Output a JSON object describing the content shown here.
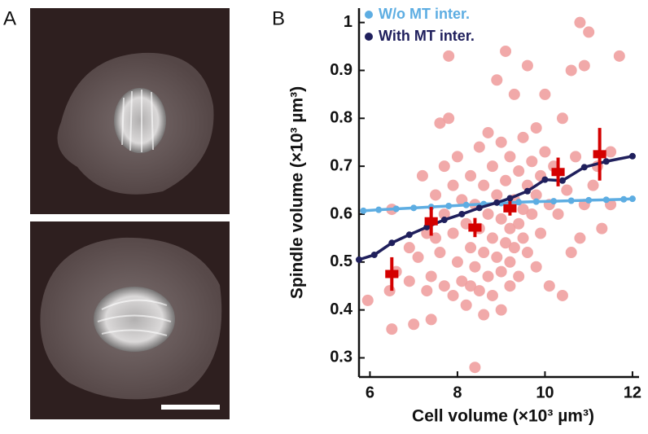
{
  "panels": {
    "a": "A",
    "b": "B"
  },
  "chart_data": {
    "type": "scatter",
    "xlabel": "Cell volume (×10³ µm³)",
    "ylabel": "Spindle volume (×10³ µm³)",
    "xlim": [
      5.75,
      12.15
    ],
    "ylim": [
      0.26,
      1.03
    ],
    "xticks": [
      6,
      8,
      10,
      12
    ],
    "yticks": [
      0.3,
      0.4,
      0.5,
      0.6,
      0.7,
      0.8,
      0.9,
      1
    ],
    "legend": "upper left",
    "series": [
      {
        "type": "scatter",
        "color": "#f0a0a0",
        "x": [
          5.95,
          6.5,
          6.45,
          6.5,
          6.6,
          6.9,
          7.0,
          7.1,
          7.2,
          7.3,
          7.4,
          7.4,
          7.5,
          7.5,
          7.6,
          7.6,
          7.7,
          7.7,
          7.7,
          7.8,
          7.8,
          7.9,
          7.9,
          7.9,
          8.0,
          8.0,
          8.1,
          8.1,
          8.2,
          8.2,
          8.3,
          8.3,
          8.3,
          8.4,
          8.4,
          8.4,
          8.5,
          8.5,
          8.5,
          8.6,
          8.6,
          8.6,
          8.7,
          8.7,
          8.7,
          8.8,
          8.8,
          8.8,
          8.9,
          8.9,
          8.9,
          9.0,
          9.0,
          9.0,
          9.0,
          9.1,
          9.1,
          9.1,
          9.2,
          9.2,
          9.2,
          9.2,
          9.3,
          9.3,
          9.3,
          9.4,
          9.4,
          9.4,
          9.5,
          9.5,
          9.5,
          9.6,
          9.6,
          9.6,
          9.7,
          9.7,
          9.8,
          9.8,
          9.8,
          9.9,
          9.9,
          10.0,
          10.0,
          10.1,
          10.1,
          10.2,
          10.3,
          10.4,
          10.4,
          10.5,
          10.6,
          10.6,
          10.7,
          10.8,
          10.9,
          10.9,
          11.0,
          11.1,
          11.2,
          11.3,
          11.5,
          11.7,
          10.8,
          11.5,
          6.9,
          7.3
        ],
        "values": [
          0.42,
          0.36,
          0.44,
          0.61,
          0.48,
          0.53,
          0.37,
          0.51,
          0.68,
          0.56,
          0.47,
          0.38,
          0.64,
          0.55,
          0.79,
          0.52,
          0.7,
          0.6,
          0.45,
          0.8,
          0.93,
          0.66,
          0.43,
          0.56,
          0.72,
          0.5,
          0.63,
          0.46,
          0.58,
          0.41,
          0.68,
          0.53,
          0.45,
          0.62,
          0.49,
          0.28,
          0.74,
          0.57,
          0.44,
          0.66,
          0.52,
          0.39,
          0.77,
          0.6,
          0.47,
          0.7,
          0.55,
          0.43,
          0.64,
          0.51,
          0.88,
          0.75,
          0.59,
          0.48,
          0.4,
          0.67,
          0.54,
          0.94,
          0.72,
          0.57,
          0.5,
          0.45,
          0.85,
          0.63,
          0.53,
          0.69,
          0.58,
          0.47,
          0.76,
          0.61,
          0.55,
          0.66,
          0.52,
          0.91,
          0.71,
          0.6,
          0.78,
          0.64,
          0.49,
          0.68,
          0.56,
          0.85,
          0.73,
          0.62,
          0.45,
          0.7,
          0.6,
          0.8,
          0.43,
          0.65,
          0.9,
          0.52,
          0.72,
          0.55,
          0.91,
          0.62,
          0.98,
          0.66,
          0.7,
          0.57,
          0.62,
          0.93,
          1.0,
          0.73,
          0.46,
          0.44
        ]
      },
      {
        "type": "line",
        "name": "W/o MT inter.",
        "color": "#5dade2",
        "x": [
          5.85,
          6.2,
          6.6,
          7.0,
          7.4,
          7.8,
          8.2,
          8.6,
          9.0,
          9.4,
          9.8,
          10.2,
          10.6,
          11.0,
          11.4,
          11.8,
          12.0
        ],
        "values": [
          0.607,
          0.609,
          0.611,
          0.613,
          0.615,
          0.617,
          0.619,
          0.621,
          0.623,
          0.625,
          0.626,
          0.627,
          0.628,
          0.629,
          0.63,
          0.631,
          0.632
        ]
      },
      {
        "type": "line",
        "name": "With MT inter.",
        "color": "#1f1f5c",
        "x": [
          5.75,
          6.1,
          6.5,
          6.9,
          7.3,
          7.7,
          8.1,
          8.5,
          8.9,
          9.2,
          9.6,
          10.0,
          10.4,
          10.9,
          11.4,
          12.0
        ],
        "values": [
          0.505,
          0.515,
          0.54,
          0.557,
          0.573,
          0.588,
          0.6,
          0.613,
          0.624,
          0.633,
          0.648,
          0.672,
          0.67,
          0.698,
          0.71,
          0.721
        ]
      },
      {
        "type": "errorbar",
        "color": "#d40000",
        "x": [
          6.5,
          7.4,
          8.4,
          9.2,
          10.3,
          11.25
        ],
        "values": [
          0.475,
          0.585,
          0.572,
          0.612,
          0.688,
          0.725
        ],
        "yerr": [
          0.035,
          0.03,
          0.02,
          0.015,
          0.03,
          0.055
        ],
        "xerr": [
          0.15,
          0.15,
          0.15,
          0.15,
          0.15,
          0.15
        ]
      }
    ]
  }
}
